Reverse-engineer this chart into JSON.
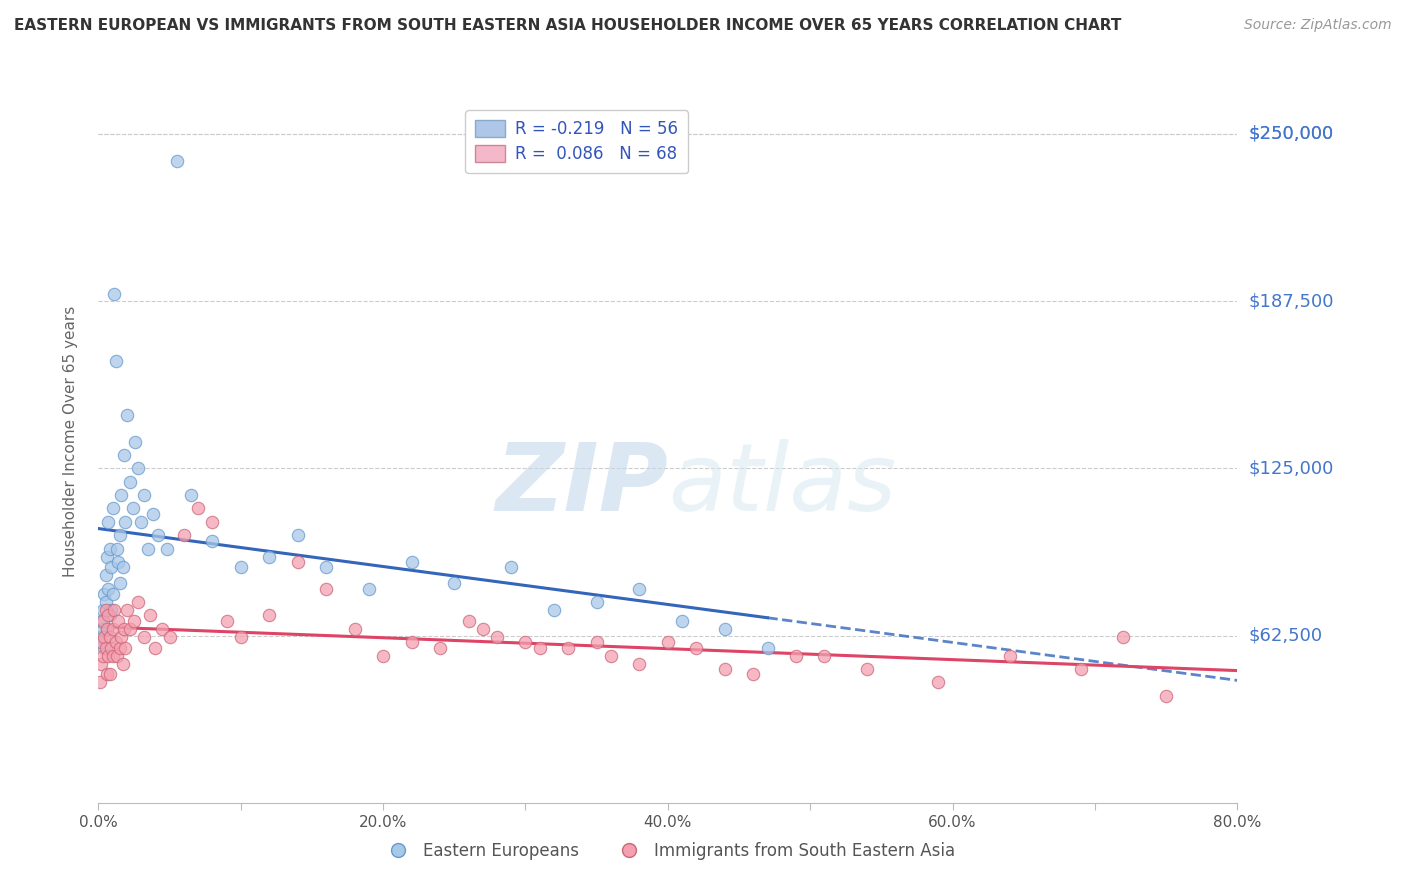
{
  "title": "EASTERN EUROPEAN VS IMMIGRANTS FROM SOUTH EASTERN ASIA HOUSEHOLDER INCOME OVER 65 YEARS CORRELATION CHART",
  "source": "Source: ZipAtlas.com",
  "ylabel": "Householder Income Over 65 years",
  "ytick_labels": [
    "$62,500",
    "$125,000",
    "$187,500",
    "$250,000"
  ],
  "ytick_values": [
    62500,
    125000,
    187500,
    250000
  ],
  "ymin": 0,
  "ymax": 270000,
  "xmin": 0.0,
  "xmax": 0.8,
  "legend_label1": "R = -0.219   N = 56",
  "legend_label2": "R =  0.086   N = 68",
  "series1_label": "Eastern Europeans",
  "series2_label": "Immigrants from South Eastern Asia",
  "series1_color": "#a8c8e8",
  "series2_color": "#f4a0b0",
  "series1_edge": "#6699cc",
  "series2_edge": "#cc6677",
  "trend1_color": "#3366bb",
  "trend2_color": "#dd4466",
  "legend_box_color": "#aec6e8",
  "legend_box2_color": "#f4b8c8",
  "legend_text_color": "#3355bb",
  "watermark": "ZIPatlas",
  "background_color": "#ffffff",
  "grid_color": "#cccccc",
  "title_color": "#333333",
  "source_color": "#999999",
  "series1_x": [
    0.001,
    0.002,
    0.003,
    0.003,
    0.004,
    0.004,
    0.005,
    0.005,
    0.006,
    0.006,
    0.007,
    0.007,
    0.008,
    0.008,
    0.009,
    0.009,
    0.01,
    0.01,
    0.011,
    0.012,
    0.013,
    0.014,
    0.015,
    0.015,
    0.016,
    0.017,
    0.018,
    0.019,
    0.02,
    0.022,
    0.024,
    0.026,
    0.028,
    0.03,
    0.032,
    0.035,
    0.038,
    0.042,
    0.048,
    0.055,
    0.065,
    0.08,
    0.1,
    0.12,
    0.14,
    0.16,
    0.19,
    0.22,
    0.25,
    0.29,
    0.32,
    0.35,
    0.38,
    0.41,
    0.44,
    0.47
  ],
  "series1_y": [
    62000,
    68000,
    72000,
    65000,
    78000,
    58000,
    85000,
    75000,
    92000,
    65000,
    105000,
    80000,
    95000,
    70000,
    88000,
    72000,
    110000,
    78000,
    190000,
    165000,
    95000,
    90000,
    100000,
    82000,
    115000,
    88000,
    130000,
    105000,
    145000,
    120000,
    110000,
    135000,
    125000,
    105000,
    115000,
    95000,
    108000,
    100000,
    95000,
    240000,
    115000,
    98000,
    88000,
    92000,
    100000,
    88000,
    80000,
    90000,
    82000,
    88000,
    72000,
    75000,
    80000,
    68000,
    65000,
    58000
  ],
  "series2_x": [
    0.001,
    0.002,
    0.002,
    0.003,
    0.003,
    0.004,
    0.005,
    0.005,
    0.006,
    0.006,
    0.007,
    0.007,
    0.008,
    0.008,
    0.009,
    0.01,
    0.01,
    0.011,
    0.012,
    0.013,
    0.014,
    0.015,
    0.016,
    0.017,
    0.018,
    0.019,
    0.02,
    0.022,
    0.025,
    0.028,
    0.032,
    0.036,
    0.04,
    0.045,
    0.05,
    0.06,
    0.07,
    0.08,
    0.09,
    0.1,
    0.12,
    0.14,
    0.16,
    0.18,
    0.2,
    0.22,
    0.24,
    0.27,
    0.3,
    0.33,
    0.36,
    0.4,
    0.44,
    0.49,
    0.54,
    0.59,
    0.64,
    0.69,
    0.72,
    0.75,
    0.26,
    0.28,
    0.31,
    0.35,
    0.38,
    0.42,
    0.46,
    0.51
  ],
  "series2_y": [
    45000,
    52000,
    60000,
    55000,
    68000,
    62000,
    72000,
    58000,
    65000,
    48000,
    70000,
    55000,
    62000,
    48000,
    58000,
    65000,
    55000,
    72000,
    60000,
    55000,
    68000,
    58000,
    62000,
    52000,
    65000,
    58000,
    72000,
    65000,
    68000,
    75000,
    62000,
    70000,
    58000,
    65000,
    62000,
    100000,
    110000,
    105000,
    68000,
    62000,
    70000,
    90000,
    80000,
    65000,
    55000,
    60000,
    58000,
    65000,
    60000,
    58000,
    55000,
    60000,
    50000,
    55000,
    50000,
    45000,
    55000,
    50000,
    62000,
    40000,
    68000,
    62000,
    58000,
    60000,
    52000,
    58000,
    48000,
    55000
  ]
}
